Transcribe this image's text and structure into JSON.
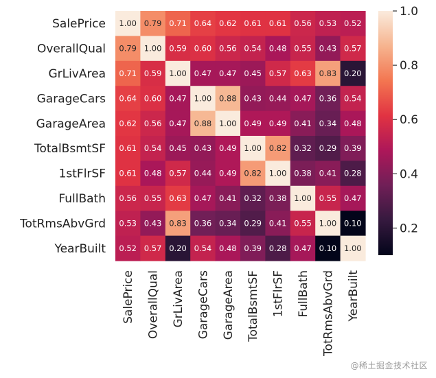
{
  "chart_data": {
    "type": "heatmap",
    "title": "",
    "xlabel": "",
    "ylabel": "",
    "labels": [
      "SalePrice",
      "OverallQual",
      "GrLivArea",
      "GarageCars",
      "GarageArea",
      "TotalBsmtSF",
      "1stFlrSF",
      "FullBath",
      "TotRmsAbvGrd",
      "YearBuilt"
    ],
    "values": [
      [
        1.0,
        0.79,
        0.71,
        0.64,
        0.62,
        0.61,
        0.61,
        0.56,
        0.53,
        0.52
      ],
      [
        0.79,
        1.0,
        0.59,
        0.6,
        0.56,
        0.54,
        0.48,
        0.55,
        0.43,
        0.57
      ],
      [
        0.71,
        0.59,
        1.0,
        0.47,
        0.47,
        0.45,
        0.57,
        0.63,
        0.83,
        0.2
      ],
      [
        0.64,
        0.6,
        0.47,
        1.0,
        0.88,
        0.43,
        0.44,
        0.47,
        0.36,
        0.54
      ],
      [
        0.62,
        0.56,
        0.47,
        0.88,
        1.0,
        0.49,
        0.49,
        0.41,
        0.34,
        0.48
      ],
      [
        0.61,
        0.54,
        0.45,
        0.43,
        0.49,
        1.0,
        0.82,
        0.32,
        0.29,
        0.39
      ],
      [
        0.61,
        0.48,
        0.57,
        0.44,
        0.49,
        0.82,
        1.0,
        0.38,
        0.41,
        0.28
      ],
      [
        0.56,
        0.55,
        0.63,
        0.47,
        0.41,
        0.32,
        0.38,
        1.0,
        0.55,
        0.47
      ],
      [
        0.53,
        0.43,
        0.83,
        0.36,
        0.34,
        0.29,
        0.41,
        0.55,
        1.0,
        0.1
      ],
      [
        0.52,
        0.57,
        0.2,
        0.54,
        0.48,
        0.39,
        0.28,
        0.47,
        0.1,
        1.0
      ]
    ],
    "colorbar": {
      "range": [
        0.1,
        1.0
      ],
      "ticks": [
        0.2,
        0.4,
        0.6,
        0.8,
        1.0
      ],
      "tick_labels": [
        "0.2",
        "0.4",
        "0.6",
        "0.8",
        "1.0"
      ],
      "colormap": "rocket",
      "colormap_stops": [
        "#03051a",
        "#35193e",
        "#701f57",
        "#ad1759",
        "#e13342",
        "#f37651",
        "#f6b48f",
        "#faebdd"
      ]
    },
    "annotation_format": "2 decimals"
  },
  "watermark": {
    "text": "@稀土掘金技术社区"
  }
}
